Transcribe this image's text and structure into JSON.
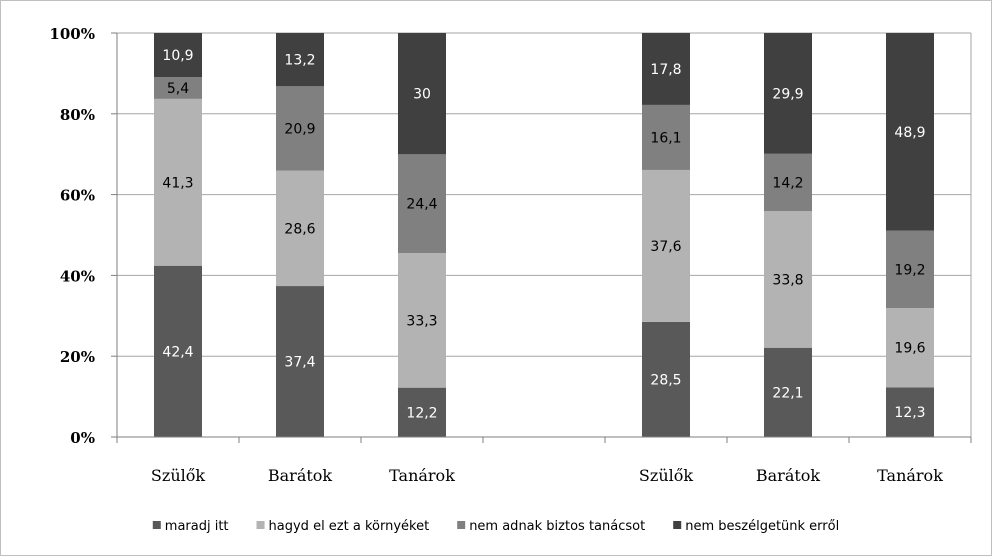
{
  "chart_data": {
    "type": "bar",
    "stacked": true,
    "normalized": true,
    "categories": [
      "Szülők",
      "Barátok",
      "Tanárok",
      "",
      "Szülők",
      "Barátok",
      "Tanárok"
    ],
    "series": [
      {
        "name": "maradj itt",
        "color": "#595959",
        "label_color": "#ffffff",
        "values": [
          42.4,
          37.4,
          12.2,
          null,
          28.5,
          22.1,
          12.3
        ]
      },
      {
        "name": "hagyd el ezt a környéket",
        "color": "#b3b3b3",
        "label_color": "#000000",
        "values": [
          41.3,
          28.6,
          33.3,
          null,
          37.6,
          33.8,
          19.6
        ]
      },
      {
        "name": "nem adnak biztos tanácsot",
        "color": "#808080",
        "label_color": "#000000",
        "values": [
          5.4,
          20.9,
          24.4,
          null,
          16.1,
          14.2,
          19.2
        ]
      },
      {
        "name": "nem beszélgetünk erről",
        "color": "#404040",
        "label_color": "#ffffff",
        "values": [
          10.9,
          13.2,
          30,
          null,
          17.8,
          29.9,
          48.9
        ]
      }
    ],
    "yticks": [
      "0%",
      "20%",
      "40%",
      "60%",
      "80%",
      "100%"
    ],
    "ylim": [
      0,
      100
    ],
    "grid": true,
    "legend": "bottom"
  }
}
